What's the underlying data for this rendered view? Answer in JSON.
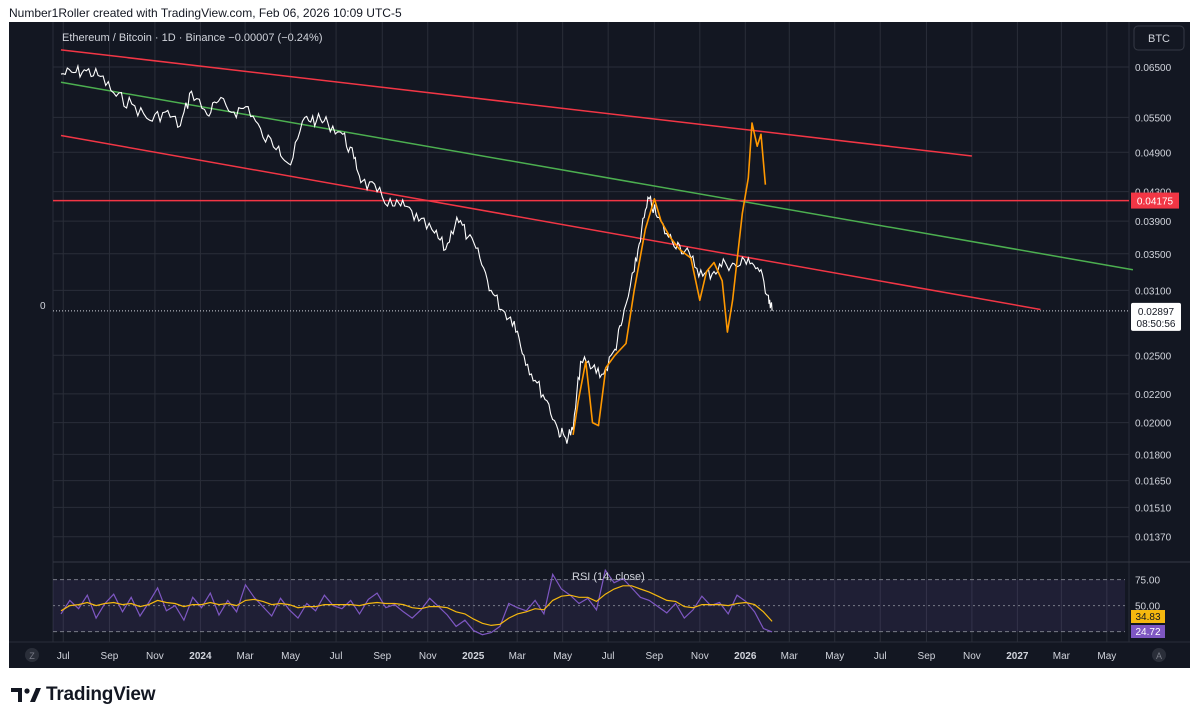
{
  "header": "Number1Roller created with TradingView.com, Feb 06, 2026 10:09 UTC-5",
  "symbol_line": "Ethereum / Bitcoin · 1D · Binance  −0.00007 (−0.24%)",
  "currency_badge": "BTC",
  "left_axis_zero": "0",
  "corner_left": "Z",
  "corner_right": "A",
  "brand": "TradingView",
  "colors": {
    "background": "#131722",
    "grid": "#2a2e39",
    "price": "#ffffff",
    "projection": "#ff9800",
    "red_line": "#f23645",
    "green_line": "#4caf50",
    "rsi_line": "#7e57c2",
    "rsi_ma": "#f5b80f",
    "text": "#d1d4dc"
  },
  "chart_data": [
    {
      "type": "line",
      "title": "Ethereum / Bitcoin · 1D · Binance",
      "xlabel": "",
      "ylabel": "",
      "x_ticks": [
        "Jul",
        "Sep",
        "Nov",
        "2024",
        "Mar",
        "May",
        "Jul",
        "Sep",
        "Nov",
        "2025",
        "Mar",
        "May",
        "Jul",
        "Sep",
        "Nov",
        "2026",
        "Mar",
        "May",
        "Jul",
        "Sep",
        "Nov",
        "2027",
        "Mar",
        "May"
      ],
      "x_tick_dates": [
        "2023-07-01",
        "2023-09-01",
        "2023-11-01",
        "2024-01-01",
        "2024-03-01",
        "2024-05-01",
        "2024-07-01",
        "2024-09-01",
        "2024-11-01",
        "2025-01-01",
        "2025-03-01",
        "2025-05-01",
        "2025-07-01",
        "2025-09-01",
        "2025-11-01",
        "2026-01-01",
        "2026-03-01",
        "2026-05-01",
        "2026-07-01",
        "2026-09-01",
        "2026-11-01",
        "2027-01-01",
        "2027-03-01",
        "2027-05-01"
      ],
      "bold_ticks": [
        "2024",
        "2025",
        "2026",
        "2027"
      ],
      "y_scale": "log",
      "y_ticks": [
        "0.06500",
        "0.05500",
        "0.04900",
        "0.04300",
        "0.03900",
        "0.03500",
        "0.03100",
        "0.02500",
        "0.02200",
        "0.02000",
        "0.01800",
        "0.01650",
        "0.01510",
        "0.01370"
      ],
      "ylim": [
        0.0126,
        0.073
      ],
      "grid": true,
      "series": [
        {
          "name": "",
          "role": "price",
          "points": [
            [
              "2023-06-28",
              0.0635
            ],
            [
              "2023-07-15",
              0.0638
            ],
            [
              "2023-08-01",
              0.0642
            ],
            [
              "2023-08-20",
              0.063
            ],
            [
              "2023-09-10",
              0.059
            ],
            [
              "2023-10-01",
              0.0575
            ],
            [
              "2023-10-25",
              0.0545
            ],
            [
              "2023-11-15",
              0.056
            ],
            [
              "2023-12-05",
              0.0535
            ],
            [
              "2023-12-20",
              0.06
            ],
            [
              "2024-01-10",
              0.0555
            ],
            [
              "2024-01-25",
              0.058
            ],
            [
              "2024-02-15",
              0.056
            ],
            [
              "2024-03-05",
              0.057
            ],
            [
              "2024-03-25",
              0.0515
            ],
            [
              "2024-04-15",
              0.05
            ],
            [
              "2024-05-01",
              0.047
            ],
            [
              "2024-05-20",
              0.055
            ],
            [
              "2024-06-05",
              0.0545
            ],
            [
              "2024-06-20",
              0.054
            ],
            [
              "2024-07-10",
              0.052
            ],
            [
              "2024-07-25",
              0.048
            ],
            [
              "2024-08-05",
              0.0445
            ],
            [
              "2024-08-25",
              0.043
            ],
            [
              "2024-09-15",
              0.041
            ],
            [
              "2024-10-01",
              0.041
            ],
            [
              "2024-10-20",
              0.039
            ],
            [
              "2024-11-10",
              0.0375
            ],
            [
              "2024-11-25",
              0.0355
            ],
            [
              "2024-12-10",
              0.0395
            ],
            [
              "2024-12-25",
              0.037
            ],
            [
              "2025-01-10",
              0.0345
            ],
            [
              "2025-01-25",
              0.031
            ],
            [
              "2025-02-10",
              0.029
            ],
            [
              "2025-02-25",
              0.028
            ],
            [
              "2025-03-10",
              0.025
            ],
            [
              "2025-03-25",
              0.023
            ],
            [
              "2025-04-10",
              0.0215
            ],
            [
              "2025-04-25",
              0.0195
            ],
            [
              "2025-05-05",
              0.019
            ],
            [
              "2025-05-15",
              0.0195
            ],
            [
              "2025-05-25",
              0.0245
            ],
            [
              "2025-06-10",
              0.024
            ],
            [
              "2025-06-25",
              0.0235
            ],
            [
              "2025-07-10",
              0.0255
            ],
            [
              "2025-07-20",
              0.028
            ],
            [
              "2025-08-05",
              0.033
            ],
            [
              "2025-08-15",
              0.038
            ],
            [
              "2025-08-25",
              0.042
            ],
            [
              "2025-09-05",
              0.0395
            ],
            [
              "2025-09-20",
              0.037
            ],
            [
              "2025-10-05",
              0.036
            ],
            [
              "2025-10-20",
              0.0345
            ],
            [
              "2025-11-05",
              0.0325
            ],
            [
              "2025-11-20",
              0.033
            ],
            [
              "2025-12-05",
              0.034
            ],
            [
              "2025-12-20",
              0.0335
            ],
            [
              "2026-01-05",
              0.0345
            ],
            [
              "2026-01-20",
              0.033
            ],
            [
              "2026-02-01",
              0.0305
            ],
            [
              "2026-02-06",
              0.02897
            ]
          ]
        },
        {
          "name": "",
          "role": "projection",
          "points": [
            [
              "2025-05-15",
              0.0192
            ],
            [
              "2025-05-22",
              0.0215
            ],
            [
              "2025-06-01",
              0.0245
            ],
            [
              "2025-06-10",
              0.02
            ],
            [
              "2025-06-18",
              0.0198
            ],
            [
              "2025-06-28",
              0.024
            ],
            [
              "2025-07-10",
              0.025
            ],
            [
              "2025-07-25",
              0.026
            ],
            [
              "2025-08-05",
              0.031
            ],
            [
              "2025-08-20",
              0.038
            ],
            [
              "2025-09-01",
              0.042
            ],
            [
              "2025-09-10",
              0.039
            ],
            [
              "2025-09-22",
              0.037
            ],
            [
              "2025-10-05",
              0.0355
            ],
            [
              "2025-10-20",
              0.0345
            ],
            [
              "2025-11-01",
              0.03
            ],
            [
              "2025-11-10",
              0.033
            ],
            [
              "2025-11-20",
              0.034
            ],
            [
              "2025-12-01",
              0.032
            ],
            [
              "2025-12-08",
              0.027
            ],
            [
              "2025-12-15",
              0.03
            ],
            [
              "2025-12-28",
              0.04
            ],
            [
              "2026-01-05",
              0.045
            ],
            [
              "2026-01-10",
              0.054
            ],
            [
              "2026-01-17",
              0.05
            ],
            [
              "2026-01-22",
              0.052
            ],
            [
              "2026-01-28",
              0.044
            ]
          ]
        }
      ],
      "trendlines": [
        {
          "role": "channel_upper",
          "color": "red",
          "start": [
            "2023-06-28",
            0.0688
          ],
          "end": [
            "2026-11-01",
            0.0484
          ]
        },
        {
          "role": "channel_lower",
          "color": "red",
          "start": [
            "2023-06-28",
            0.0518
          ],
          "end": [
            "2027-02-01",
            0.0291
          ]
        },
        {
          "role": "midline",
          "color": "green",
          "start": [
            "2023-06-28",
            0.0618
          ],
          "end": [
            "2027-06-05",
            0.0332
          ]
        },
        {
          "role": "horizontal",
          "color": "red",
          "level": 0.04175
        }
      ],
      "price_labels": [
        {
          "text": "0.04175",
          "level": 0.04175,
          "color": "red"
        },
        {
          "text": "0.02897",
          "level": 0.02897,
          "color": "white",
          "sub": "08:50:56"
        }
      ]
    },
    {
      "type": "line",
      "title": "RSI (14, close)",
      "ylim": [
        15,
        90
      ],
      "y_ticks": [
        "75.00",
        "50.00"
      ],
      "bands": [
        75,
        50,
        25
      ],
      "series": [
        {
          "name": "RSI",
          "color": "purple",
          "values": [
            42,
            55,
            47,
            60,
            38,
            52,
            61,
            44,
            58,
            40,
            53,
            67,
            45,
            50,
            36,
            58,
            48,
            62,
            41,
            55,
            44,
            70,
            58,
            49,
            40,
            57,
            46,
            38,
            52,
            45,
            60,
            50,
            47,
            55,
            42,
            56,
            62,
            48,
            51,
            44,
            38,
            46,
            57,
            49,
            41,
            30,
            36,
            26,
            22,
            24,
            30,
            52,
            48,
            45,
            55,
            42,
            80,
            66,
            60,
            52,
            57,
            46,
            84,
            72,
            76,
            67,
            58,
            55,
            49,
            43,
            52,
            38,
            46,
            59,
            50,
            53,
            42,
            60,
            54,
            44,
            28,
            24.72
          ]
        },
        {
          "name": "RSI-based MA",
          "color": "yellow",
          "values": [
            45,
            50,
            51,
            53,
            50,
            52,
            53,
            51,
            52,
            49,
            51,
            55,
            53,
            52,
            49,
            51,
            51,
            53,
            51,
            52,
            50,
            55,
            56,
            54,
            51,
            52,
            51,
            48,
            49,
            49,
            51,
            51,
            51,
            51,
            50,
            52,
            53,
            52,
            52,
            51,
            48,
            47,
            49,
            49,
            48,
            44,
            42,
            37,
            33,
            31,
            32,
            38,
            42,
            44,
            47,
            46,
            55,
            59,
            60,
            58,
            58,
            54,
            61,
            66,
            69,
            69,
            66,
            63,
            59,
            55,
            54,
            49,
            48,
            51,
            51,
            51,
            50,
            52,
            53,
            51,
            44,
            34.83
          ]
        }
      ],
      "last_labels": [
        {
          "text": "34.83",
          "color": "yellow"
        },
        {
          "text": "24.72",
          "color": "purple"
        }
      ]
    }
  ]
}
